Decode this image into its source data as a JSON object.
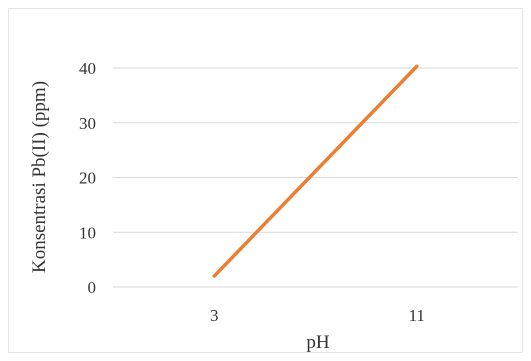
{
  "chart_data": {
    "type": "line",
    "xlabel": "pH",
    "ylabel": "Konsentrasi Pb(II) (ppm)",
    "categories": [
      "3",
      "11"
    ],
    "series": [
      {
        "values": [
          2,
          40.3
        ]
      }
    ],
    "ylim": [
      0,
      40
    ],
    "yticks": [
      "0",
      "10",
      "20",
      "30",
      "40"
    ],
    "grid": true,
    "legend": "none",
    "colors": {
      "line": "#ed7d31",
      "grid": "#d9d9d9",
      "text": "#333333"
    }
  }
}
